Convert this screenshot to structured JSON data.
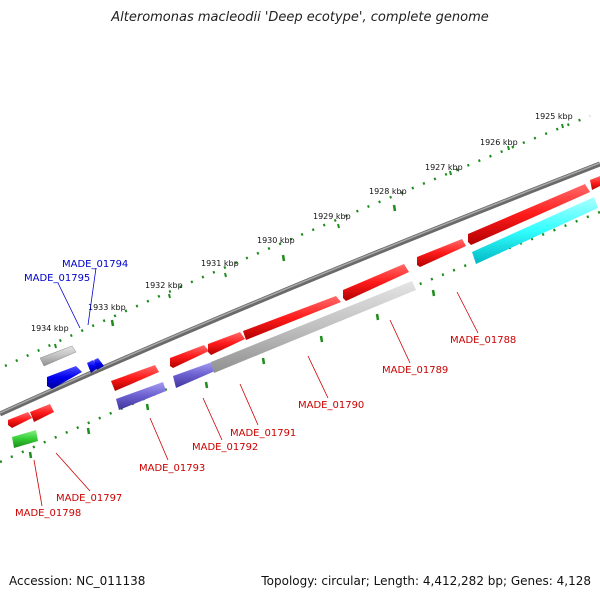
{
  "title": "Alteromonas macleodii 'Deep ecotype', complete genome",
  "footer": {
    "accession": "Accession: NC_011138",
    "summary": "Topology: circular; Length: 4,412,282 bp; Genes: 4,128"
  },
  "colors": {
    "backbone": "#808080",
    "tick_green": "#1e8c1e",
    "forward_red": "#ff1a1a",
    "reverse_red": "#ff1a1a",
    "rrna_grey": "#c0c0c0",
    "cyan": "#33ffff",
    "blue": "#0000ee",
    "purple": "#6b5fd0",
    "green": "#33cc33",
    "label_red": "#cc0000",
    "label_blue": "#0000cc"
  },
  "kbp_ticks": [
    "1925 kbp",
    "1926 kbp",
    "1927 kbp",
    "1928 kbp",
    "1929 kbp",
    "1930 kbp",
    "1931 kbp",
    "1932 kbp",
    "1933 kbp",
    "1934 kbp"
  ],
  "gene_labels": {
    "made_01794": "MADE_01794",
    "made_01795": "MADE_01795",
    "made_01788": "MADE_01788",
    "made_01789": "MADE_01789",
    "made_01790": "MADE_01790",
    "made_01791": "MADE_01791",
    "made_01792": "MADE_01792",
    "made_01793": "MADE_01793",
    "made_01797": "MADE_01797",
    "made_01798": "MADE_01798"
  }
}
